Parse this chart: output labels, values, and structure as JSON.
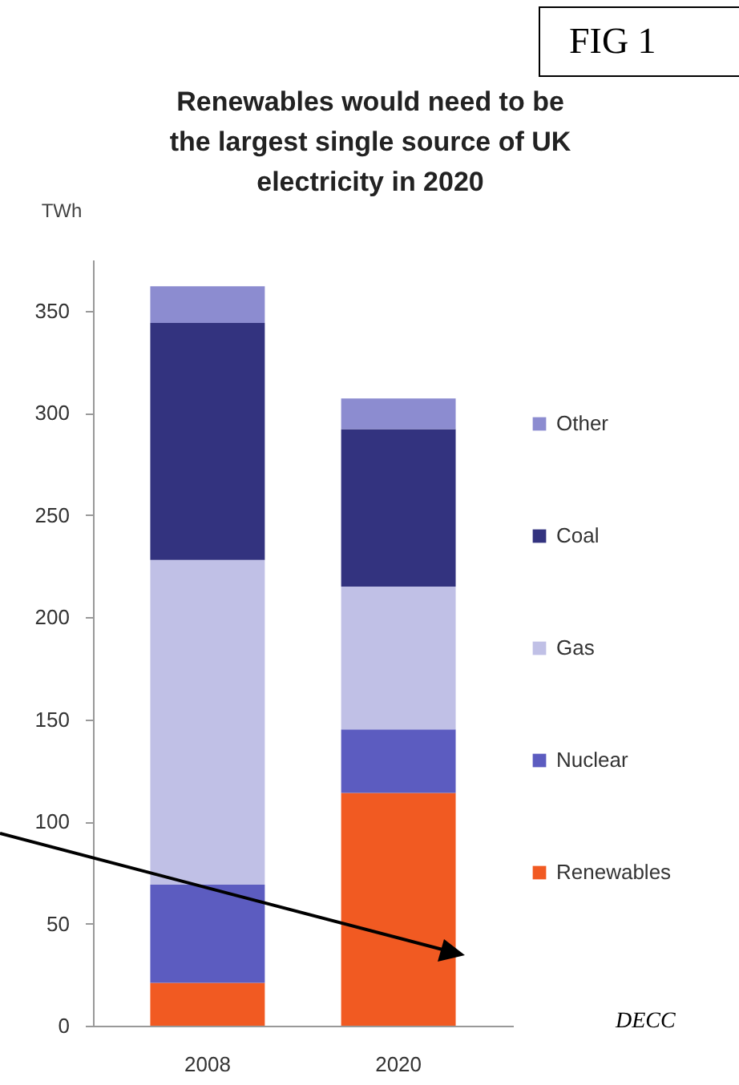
{
  "chart_data": {
    "type": "bar",
    "stacked": true,
    "title": "Renewables would need to be the largest single source of UK electricity in 2020",
    "ylabel": "TWh",
    "categories": [
      "2008",
      "2020"
    ],
    "series": [
      {
        "name": "Renewables",
        "color": "#f15a22",
        "values": [
          21,
          114
        ]
      },
      {
        "name": "Nuclear",
        "color": "#5c5cc0",
        "values": [
          48,
          31
        ]
      },
      {
        "name": "Gas",
        "color": "#c0c0e6",
        "values": [
          159,
          70
        ]
      },
      {
        "name": "Coal",
        "color": "#33337f",
        "values": [
          116,
          77
        ]
      },
      {
        "name": "Other",
        "color": "#8c8cd0",
        "values": [
          18,
          15
        ]
      }
    ],
    "ylim": [
      0,
      375
    ],
    "yticks": [
      0,
      50,
      100,
      150,
      200,
      250,
      300,
      350
    ],
    "grid": false,
    "legend": "right",
    "annotations": [
      "FIG 1",
      "DECC"
    ]
  }
}
